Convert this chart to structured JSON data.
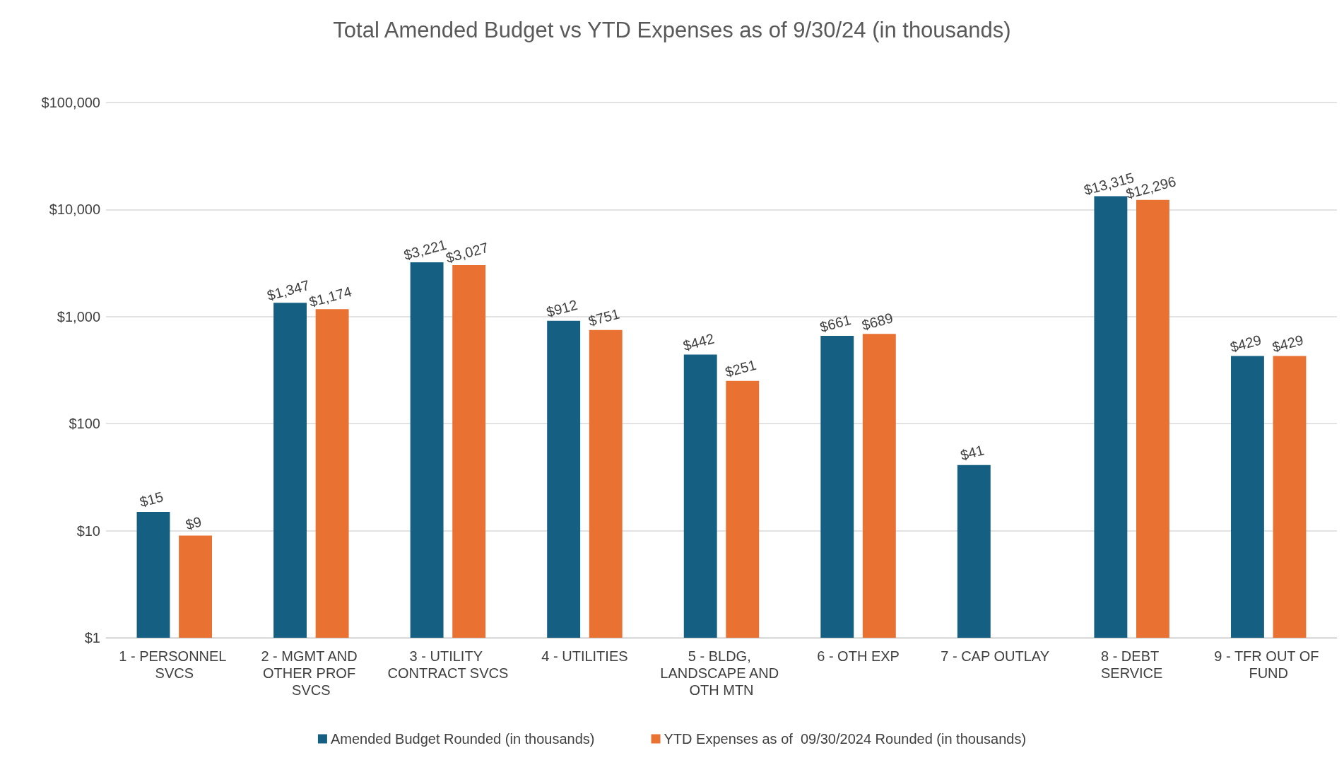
{
  "chart_data": {
    "type": "bar",
    "title": "Total Amended Budget vs YTD Expenses as of 9/30/24 (in thousands)",
    "categories": [
      "1 - PERSONNEL SVCS",
      "2 - MGMT AND OTHER PROF SVCS",
      "3 - UTILITY CONTRACT SVCS",
      "4 - UTILITIES",
      "5 - BLDG, LANDSCAPE AND OTH MTN",
      "6 - OTH EXP",
      "7 - CAP OUTLAY",
      "8 - DEBT SERVICE",
      "9 - TFR OUT OF FUND"
    ],
    "series": [
      {
        "name": "Amended Budget Rounded (in thousands)",
        "color": "#156082",
        "values": [
          15,
          1347,
          3221,
          912,
          442,
          661,
          41,
          13315,
          429
        ],
        "value_labels": [
          "$15",
          "$1,347",
          "$3,221",
          "$912",
          "$442",
          "$661",
          "$41",
          "$13,315",
          "$429"
        ]
      },
      {
        "name": "YTD Expenses as of  09/30/2024 Rounded (in thousands)",
        "color": "#e97132",
        "values": [
          9,
          1174,
          3027,
          751,
          251,
          689,
          null,
          12296,
          429
        ],
        "value_labels": [
          "$9",
          "$1,174",
          "$3,027",
          "$751",
          "$251",
          "$689",
          null,
          "$12,296",
          "$429"
        ]
      }
    ],
    "log": "y",
    "ylim": [
      1,
      100000
    ],
    "yticks": [
      {
        "value": 1,
        "label": "$1"
      },
      {
        "value": 10,
        "label": "$10"
      },
      {
        "value": 100,
        "label": "$100"
      },
      {
        "value": 1000,
        "label": "$1,000"
      },
      {
        "value": 10000,
        "label": "$10,000"
      },
      {
        "value": 100000,
        "label": "$100,000"
      }
    ],
    "grid": "y",
    "legend": "bottom"
  }
}
